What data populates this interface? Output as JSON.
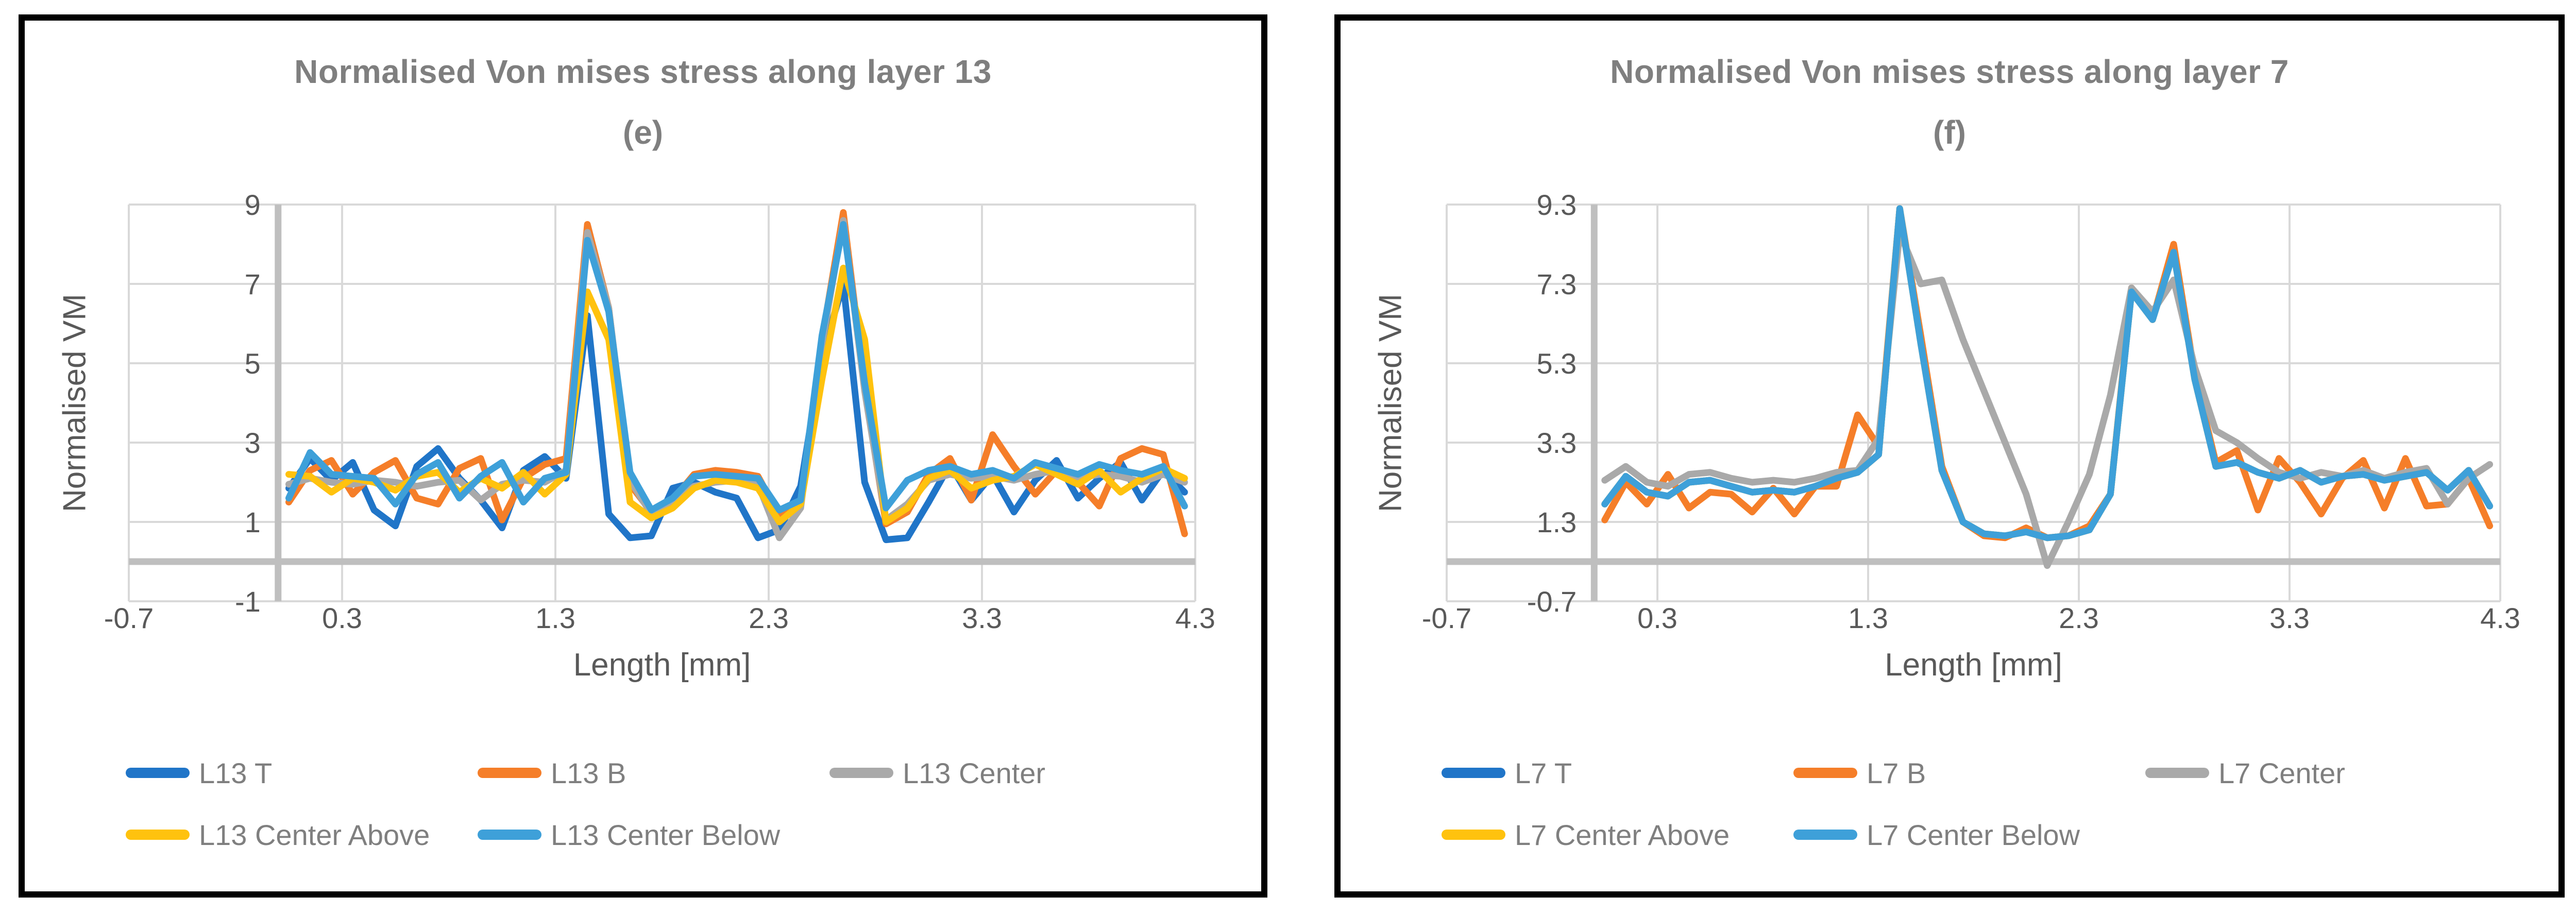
{
  "figure": {
    "background": "#ffffff",
    "panel_border_color": "#000000"
  },
  "chart_data": [
    {
      "type": "line",
      "title": "Normalised Von mises stress along layer 13",
      "subtitle": "(e)",
      "xlabel": "Length [mm]",
      "ylabel": "Normalised VM",
      "xlim": [
        -0.7,
        4.3
      ],
      "ylim": [
        -1,
        9
      ],
      "xticks": [
        -0.7,
        0.3,
        1.3,
        2.3,
        3.3,
        4.3
      ],
      "xtick_labels": [
        "-0.7",
        "0.3",
        "1.3",
        "2.3",
        "3.3",
        "4.3"
      ],
      "yticks": [
        9,
        7,
        5,
        3,
        1,
        -1
      ],
      "ytick_labels": [
        "9",
        "7",
        "5",
        "3",
        "1",
        "-1"
      ],
      "axis_cross_y": 0,
      "grid": true,
      "grid_color": "#d9d9d9",
      "axis_color": "#bfbfbf",
      "legend_position": "bottom",
      "x": [
        0.05,
        0.15,
        0.25,
        0.35,
        0.45,
        0.55,
        0.65,
        0.75,
        0.85,
        0.95,
        1.05,
        1.15,
        1.25,
        1.35,
        1.45,
        1.55,
        1.65,
        1.75,
        1.85,
        1.95,
        2.05,
        2.15,
        2.25,
        2.35,
        2.45,
        2.55,
        2.65,
        2.75,
        2.85,
        2.95,
        3.05,
        3.15,
        3.25,
        3.35,
        3.45,
        3.55,
        3.65,
        3.75,
        3.85,
        3.95,
        4.05,
        4.15,
        4.25
      ],
      "series": [
        {
          "name": "L13 T",
          "color": "#2075c8",
          "values": [
            1.85,
            2.6,
            2.05,
            2.5,
            1.3,
            0.9,
            2.4,
            2.85,
            2.1,
            1.55,
            0.85,
            2.3,
            2.65,
            2.1,
            6.2,
            1.2,
            0.6,
            0.65,
            1.85,
            2.0,
            1.75,
            1.6,
            0.6,
            0.8,
            1.9,
            5.2,
            7.0,
            2.0,
            0.55,
            0.6,
            1.5,
            2.45,
            1.55,
            2.2,
            1.25,
            2.05,
            2.55,
            1.6,
            2.1,
            2.5,
            1.55,
            2.3,
            1.75
          ]
        },
        {
          "name": "L13 B",
          "color": "#f57e29",
          "values": [
            1.5,
            2.3,
            2.55,
            1.7,
            2.25,
            2.55,
            1.6,
            1.45,
            2.35,
            2.6,
            1.05,
            2.1,
            2.45,
            2.6,
            8.5,
            6.4,
            1.95,
            1.25,
            1.55,
            2.2,
            2.3,
            2.25,
            2.15,
            1.15,
            1.4,
            5.6,
            8.8,
            4.4,
            0.95,
            1.25,
            2.2,
            2.6,
            1.55,
            3.2,
            2.4,
            1.7,
            2.3,
            2.0,
            1.4,
            2.6,
            2.85,
            2.7,
            0.7
          ]
        },
        {
          "name": "L13 Center",
          "color": "#a9a9a9",
          "values": [
            1.95,
            2.1,
            2.0,
            1.95,
            2.05,
            2.0,
            1.9,
            2.0,
            2.05,
            1.55,
            1.95,
            2.05,
            2.0,
            2.3,
            8.3,
            6.4,
            2.05,
            1.2,
            1.45,
            1.9,
            2.0,
            2.05,
            1.95,
            0.6,
            1.35,
            5.5,
            8.6,
            4.3,
            1.05,
            1.45,
            2.05,
            2.2,
            2.1,
            2.15,
            2.05,
            2.2,
            2.3,
            2.1,
            2.2,
            2.15,
            2.0,
            2.2,
            2.0
          ]
        },
        {
          "name": "L13 Center Above",
          "color": "#ffc20e",
          "values": [
            2.2,
            2.15,
            1.75,
            2.1,
            2.0,
            1.8,
            2.15,
            2.25,
            1.75,
            2.1,
            1.85,
            2.25,
            1.7,
            2.2,
            6.8,
            5.6,
            1.5,
            1.1,
            1.35,
            1.85,
            2.05,
            2.0,
            1.85,
            1.0,
            1.45,
            4.6,
            7.4,
            5.6,
            1.0,
            1.35,
            2.1,
            2.3,
            1.85,
            2.05,
            2.15,
            2.45,
            2.2,
            1.95,
            2.3,
            1.75,
            2.1,
            2.35,
            2.1
          ]
        },
        {
          "name": "L13 Center Below",
          "color": "#3ea0d9",
          "values": [
            1.6,
            2.75,
            2.2,
            2.15,
            2.1,
            1.45,
            2.2,
            2.5,
            1.6,
            2.15,
            2.5,
            1.5,
            2.1,
            2.25,
            8.1,
            6.3,
            2.25,
            1.3,
            1.6,
            2.15,
            2.2,
            2.15,
            2.1,
            1.3,
            1.55,
            5.7,
            8.5,
            4.5,
            1.35,
            2.05,
            2.3,
            2.4,
            2.2,
            2.3,
            2.1,
            2.5,
            2.35,
            2.2,
            2.45,
            2.3,
            2.2,
            2.4,
            1.4
          ]
        }
      ]
    },
    {
      "type": "line",
      "title": "Normalised Von mises stress along layer 7",
      "subtitle": "(f)",
      "xlabel": "Length [mm]",
      "ylabel": "Normalised VM",
      "xlim": [
        -0.7,
        4.3
      ],
      "ylim": [
        -0.7,
        9.3
      ],
      "xticks": [
        -0.7,
        0.3,
        1.3,
        2.3,
        3.3,
        4.3
      ],
      "xtick_labels": [
        "-0.7",
        "0.3",
        "1.3",
        "2.3",
        "3.3",
        "4.3"
      ],
      "yticks": [
        9.3,
        7.3,
        5.3,
        3.3,
        1.3,
        -0.7
      ],
      "ytick_labels": [
        "9.3",
        "7.3",
        "5.3",
        "3.3",
        "1.3",
        "-0.7"
      ],
      "axis_cross_y": 0.3,
      "grid": true,
      "grid_color": "#d9d9d9",
      "axis_color": "#bfbfbf",
      "legend_position": "bottom",
      "x": [
        0.05,
        0.15,
        0.25,
        0.35,
        0.45,
        0.55,
        0.65,
        0.75,
        0.85,
        0.95,
        1.05,
        1.15,
        1.25,
        1.35,
        1.45,
        1.55,
        1.65,
        1.75,
        1.85,
        1.95,
        2.05,
        2.15,
        2.25,
        2.35,
        2.45,
        2.55,
        2.65,
        2.75,
        2.85,
        2.95,
        3.05,
        3.15,
        3.25,
        3.35,
        3.45,
        3.55,
        3.65,
        3.75,
        3.85,
        3.95,
        4.05,
        4.15,
        4.25
      ],
      "series": [
        {
          "name": "L7 T",
          "color": "#2075c8",
          "values": [
            1.75,
            2.45,
            2.05,
            1.95,
            2.3,
            2.35,
            2.2,
            2.05,
            2.1,
            2.05,
            2.2,
            2.4,
            2.55,
            3.0,
            9.2,
            5.8,
            2.6,
            1.3,
            1.0,
            0.95,
            1.05,
            0.9,
            0.95,
            1.1,
            2.0,
            7.1,
            6.4,
            8.1,
            4.9,
            2.7,
            2.8,
            2.55,
            2.4,
            2.6,
            2.3,
            2.45,
            2.5,
            2.35,
            2.45,
            2.55,
            2.1,
            2.6,
            1.7
          ]
        },
        {
          "name": "L7 B",
          "color": "#f57e29",
          "values": [
            1.35,
            2.3,
            1.75,
            2.5,
            1.65,
            2.05,
            2.0,
            1.55,
            2.15,
            1.5,
            2.2,
            2.2,
            4.0,
            3.2,
            9.2,
            6.0,
            2.7,
            1.3,
            0.95,
            0.9,
            1.15,
            0.9,
            0.95,
            1.2,
            2.0,
            7.2,
            6.4,
            8.3,
            5.0,
            2.8,
            3.1,
            1.6,
            2.9,
            2.3,
            1.5,
            2.4,
            2.85,
            1.65,
            2.9,
            1.7,
            1.75,
            2.4,
            1.2
          ]
        },
        {
          "name": "L7 Center",
          "color": "#a9a9a9",
          "values": [
            2.35,
            2.7,
            2.3,
            2.2,
            2.5,
            2.55,
            2.4,
            2.3,
            2.35,
            2.3,
            2.4,
            2.55,
            2.6,
            3.4,
            8.6,
            7.3,
            7.4,
            5.9,
            4.6,
            3.3,
            2.0,
            0.2,
            1.3,
            2.5,
            4.5,
            7.2,
            6.6,
            7.4,
            5.2,
            3.6,
            3.3,
            2.9,
            2.55,
            2.4,
            2.55,
            2.45,
            2.6,
            2.4,
            2.55,
            2.65,
            1.75,
            2.4,
            2.75
          ]
        },
        {
          "name": "L7 Center Above",
          "color": "#ffc20e",
          "values": [
            1.75,
            2.45,
            2.05,
            1.95,
            2.3,
            2.35,
            2.2,
            2.05,
            2.1,
            2.05,
            2.2,
            2.4,
            2.55,
            3.0,
            9.2,
            5.8,
            2.6,
            1.3,
            1.0,
            0.95,
            1.05,
            0.9,
            0.95,
            1.1,
            2.0,
            7.1,
            6.4,
            8.1,
            4.9,
            2.7,
            2.8,
            2.55,
            2.4,
            2.6,
            2.3,
            2.45,
            2.5,
            2.35,
            2.45,
            2.55,
            2.1,
            2.6,
            1.7
          ]
        },
        {
          "name": "L7 Center Below",
          "color": "#3ea0d9",
          "values": [
            1.75,
            2.45,
            2.05,
            1.95,
            2.3,
            2.35,
            2.2,
            2.05,
            2.1,
            2.05,
            2.2,
            2.4,
            2.55,
            3.0,
            9.2,
            5.8,
            2.6,
            1.3,
            1.0,
            0.95,
            1.05,
            0.9,
            0.95,
            1.1,
            2.0,
            7.1,
            6.4,
            8.1,
            4.9,
            2.7,
            2.8,
            2.55,
            2.4,
            2.6,
            2.3,
            2.45,
            2.5,
            2.35,
            2.45,
            2.55,
            2.1,
            2.6,
            1.7
          ]
        }
      ]
    }
  ]
}
